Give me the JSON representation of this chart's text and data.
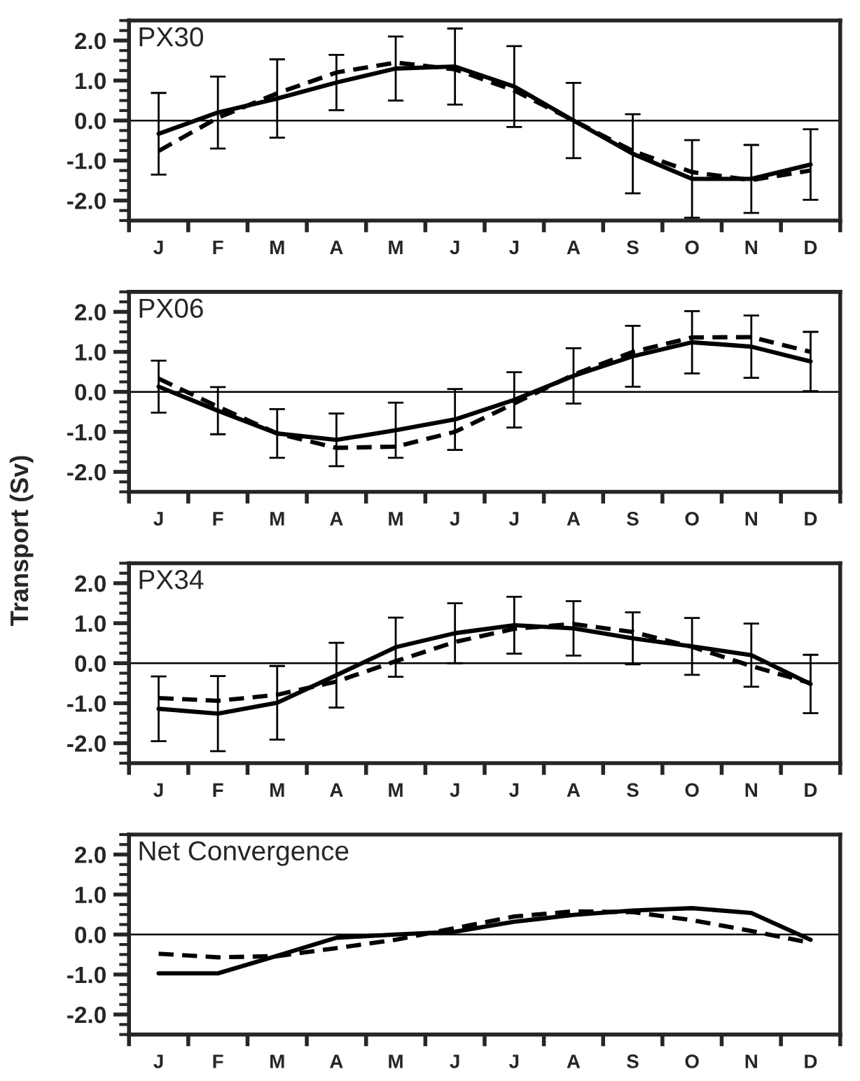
{
  "chart_data": [
    {
      "type": "line",
      "title": "PX30",
      "categories": [
        "J",
        "F",
        "M",
        "A",
        "M",
        "J",
        "J",
        "A",
        "S",
        "O",
        "N",
        "D"
      ],
      "ylim": [
        -2.5,
        2.5
      ],
      "yticks": [
        {
          "value": -2.5,
          "label": null
        },
        {
          "value": -2.25,
          "label": null
        },
        {
          "value": -2,
          "label": "-2.0"
        },
        {
          "value": -1.75,
          "label": null
        },
        {
          "value": -1.5,
          "label": null
        },
        {
          "value": -1.25,
          "label": null
        },
        {
          "value": -1,
          "label": "-1.0"
        },
        {
          "value": -0.75,
          "label": null
        },
        {
          "value": -0.5,
          "label": null
        },
        {
          "value": -0.25,
          "label": null
        },
        {
          "value": 0,
          "label": "0.0"
        },
        {
          "value": 0.25,
          "label": null
        },
        {
          "value": 0.5,
          "label": null
        },
        {
          "value": 0.75,
          "label": null
        },
        {
          "value": 1,
          "label": "1.0"
        },
        {
          "value": 1.25,
          "label": null
        },
        {
          "value": 1.5,
          "label": null
        },
        {
          "value": 1.75,
          "label": null
        },
        {
          "value": 2,
          "label": "2.0"
        },
        {
          "value": 2.25,
          "label": null
        },
        {
          "value": 2.5,
          "label": null
        }
      ],
      "ref_lines": [
        {
          "axis": "y",
          "value": 0
        }
      ],
      "series": [
        {
          "color": "#000000",
          "line_style": "solid",
          "values": [
            -0.33,
            0.2,
            0.55,
            0.95,
            1.3,
            1.35,
            0.85,
            0,
            -0.83,
            -1.46,
            -1.46,
            -1.1
          ],
          "errors": [
            1.02,
            0.9,
            0.98,
            0.69,
            0.8,
            0.95,
            1.01,
            0.94,
            0.99,
            0.97,
            0.85,
            0.88
          ]
        },
        {
          "color": "#000000",
          "line_style": "dashed",
          "values": [
            -0.76,
            0.07,
            0.68,
            1.2,
            1.45,
            1.28,
            0.75,
            0,
            -0.76,
            -1.29,
            -1.49,
            -1.25
          ]
        }
      ]
    },
    {
      "type": "line",
      "title": "PX06",
      "ylabel": "Transport (Sv)",
      "categories": [
        "J",
        "F",
        "M",
        "A",
        "M",
        "J",
        "J",
        "A",
        "S",
        "O",
        "N",
        "D"
      ],
      "ylim": [
        -2.5,
        2.5
      ],
      "yticks": [
        {
          "value": -2.5,
          "label": null
        },
        {
          "value": -2.25,
          "label": null
        },
        {
          "value": -2,
          "label": "-2.0"
        },
        {
          "value": -1.75,
          "label": null
        },
        {
          "value": -1.5,
          "label": null
        },
        {
          "value": -1.25,
          "label": null
        },
        {
          "value": -1,
          "label": "-1.0"
        },
        {
          "value": -0.75,
          "label": null
        },
        {
          "value": -0.5,
          "label": null
        },
        {
          "value": -0.25,
          "label": null
        },
        {
          "value": 0,
          "label": "0.0"
        },
        {
          "value": 0.25,
          "label": null
        },
        {
          "value": 0.5,
          "label": null
        },
        {
          "value": 0.75,
          "label": null
        },
        {
          "value": 1,
          "label": "1.0"
        },
        {
          "value": 1.25,
          "label": null
        },
        {
          "value": 1.5,
          "label": null
        },
        {
          "value": 1.75,
          "label": null
        },
        {
          "value": 2,
          "label": "2.0"
        },
        {
          "value": 2.25,
          "label": null
        },
        {
          "value": 2.5,
          "label": null
        }
      ],
      "ref_lines": [
        {
          "axis": "y",
          "value": 0
        }
      ],
      "series": [
        {
          "color": "#000000",
          "line_style": "solid",
          "values": [
            0.13,
            -0.47,
            -1.04,
            -1.2,
            -0.96,
            -0.69,
            -0.2,
            0.4,
            0.89,
            1.24,
            1.13,
            0.76
          ],
          "errors": [
            0.65,
            0.59,
            0.61,
            0.66,
            0.69,
            0.76,
            0.69,
            0.69,
            0.76,
            0.78,
            0.78,
            0.74
          ]
        },
        {
          "color": "#000000",
          "line_style": "dashed",
          "values": [
            0.33,
            -0.37,
            -1.04,
            -1.4,
            -1.37,
            -1.0,
            -0.29,
            0.43,
            1.0,
            1.36,
            1.37,
            1.0
          ]
        }
      ]
    },
    {
      "type": "line",
      "title": "PX34",
      "categories": [
        "J",
        "F",
        "M",
        "A",
        "M",
        "J",
        "J",
        "A",
        "S",
        "O",
        "N",
        "D"
      ],
      "ylim": [
        -2.5,
        2.5
      ],
      "yticks": [
        {
          "value": -2.5,
          "label": null
        },
        {
          "value": -2.25,
          "label": null
        },
        {
          "value": -2,
          "label": "-2.0"
        },
        {
          "value": -1.75,
          "label": null
        },
        {
          "value": -1.5,
          "label": null
        },
        {
          "value": -1.25,
          "label": null
        },
        {
          "value": -1,
          "label": "-1.0"
        },
        {
          "value": -0.75,
          "label": null
        },
        {
          "value": -0.5,
          "label": null
        },
        {
          "value": -0.25,
          "label": null
        },
        {
          "value": 0,
          "label": "0.0"
        },
        {
          "value": 0.25,
          "label": null
        },
        {
          "value": 0.5,
          "label": null
        },
        {
          "value": 0.75,
          "label": null
        },
        {
          "value": 1,
          "label": "1.0"
        },
        {
          "value": 1.25,
          "label": null
        },
        {
          "value": 1.5,
          "label": null
        },
        {
          "value": 1.75,
          "label": null
        },
        {
          "value": 2,
          "label": "2.0"
        },
        {
          "value": 2.25,
          "label": null
        },
        {
          "value": 2.5,
          "label": null
        }
      ],
      "ref_lines": [
        {
          "axis": "y",
          "value": 0
        }
      ],
      "series": [
        {
          "color": "#000000",
          "line_style": "solid",
          "values": [
            -1.14,
            -1.26,
            -0.99,
            -0.3,
            0.4,
            0.75,
            0.95,
            0.87,
            0.62,
            0.42,
            0.2,
            -0.52
          ],
          "errors": [
            0.81,
            0.94,
            0.92,
            0.81,
            0.74,
            0.75,
            0.71,
            0.68,
            0.65,
            0.71,
            0.79,
            0.73
          ]
        },
        {
          "color": "#000000",
          "line_style": "dashed",
          "values": [
            -0.87,
            -0.94,
            -0.79,
            -0.46,
            0.05,
            0.53,
            0.86,
            0.98,
            0.78,
            0.41,
            -0.07,
            -0.5
          ]
        }
      ]
    },
    {
      "type": "line",
      "title": "Net Convergence",
      "categories": [
        "J",
        "F",
        "M",
        "A",
        "M",
        "J",
        "J",
        "A",
        "S",
        "O",
        "N",
        "D"
      ],
      "ylim": [
        -2.5,
        2.5
      ],
      "yticks": [
        {
          "value": -2.5,
          "label": null
        },
        {
          "value": -2.25,
          "label": null
        },
        {
          "value": -2,
          "label": "-2.0"
        },
        {
          "value": -1.75,
          "label": null
        },
        {
          "value": -1.5,
          "label": null
        },
        {
          "value": -1.25,
          "label": null
        },
        {
          "value": -1,
          "label": "-1.0"
        },
        {
          "value": -0.75,
          "label": null
        },
        {
          "value": -0.5,
          "label": null
        },
        {
          "value": -0.25,
          "label": null
        },
        {
          "value": 0,
          "label": "0.0"
        },
        {
          "value": 0.25,
          "label": null
        },
        {
          "value": 0.5,
          "label": null
        },
        {
          "value": 0.75,
          "label": null
        },
        {
          "value": 1,
          "label": "1.0"
        },
        {
          "value": 1.25,
          "label": null
        },
        {
          "value": 1.5,
          "label": null
        },
        {
          "value": 1.75,
          "label": null
        },
        {
          "value": 2,
          "label": "2.0"
        },
        {
          "value": 2.25,
          "label": null
        },
        {
          "value": 2.5,
          "label": null
        }
      ],
      "ref_lines": [
        {
          "axis": "y",
          "value": 0
        }
      ],
      "series": [
        {
          "color": "#000000",
          "line_style": "solid",
          "values": [
            -0.97,
            -0.97,
            -0.53,
            -0.08,
            0,
            0.07,
            0.32,
            0.49,
            0.6,
            0.66,
            0.54,
            -0.13
          ]
        },
        {
          "color": "#000000",
          "line_style": "dashed",
          "values": [
            -0.48,
            -0.57,
            -0.54,
            -0.34,
            -0.13,
            0.16,
            0.45,
            0.58,
            0.56,
            0.36,
            0.09,
            -0.21
          ]
        }
      ]
    }
  ]
}
